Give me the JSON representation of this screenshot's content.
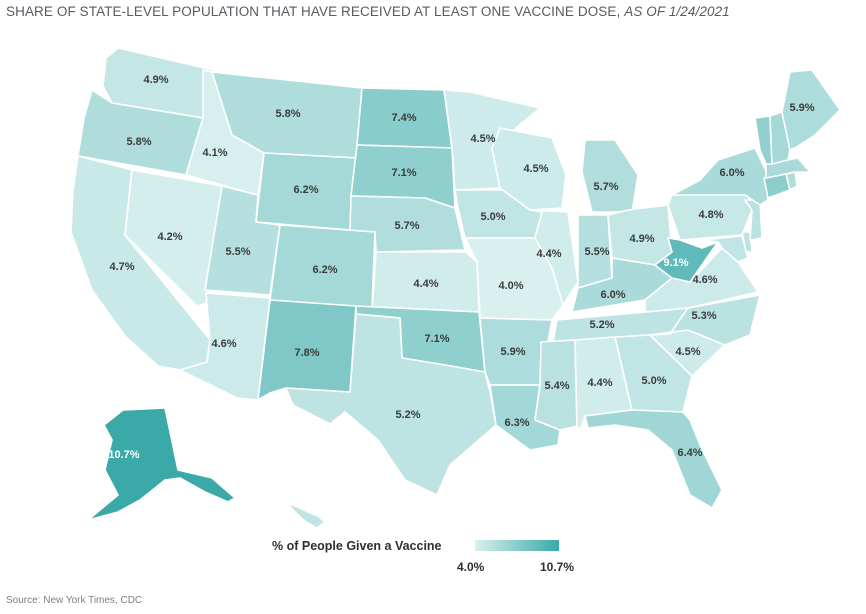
{
  "title": {
    "main": "SHARE OF STATE-LEVEL POPULATION THAT HAVE RECEIVED AT LEAST ONE VACCINE DOSE,",
    "date": "AS OF 1/24/2021"
  },
  "legend": {
    "title": "% of People Given a Vaccine",
    "min_label": "4.0%",
    "max_label": "10.7%",
    "min_value": 4.0,
    "max_value": 10.7,
    "color_low": "#d9f0ef",
    "color_high": "#3aa9a8"
  },
  "source": "Source: New York Times, CDC",
  "states": [
    {
      "id": "WA",
      "value": 4.9,
      "label": "4.9%"
    },
    {
      "id": "OR",
      "value": 5.8,
      "label": "5.8%"
    },
    {
      "id": "CA",
      "value": 4.7,
      "label": "4.7%"
    },
    {
      "id": "NV",
      "value": 4.2,
      "label": "4.2%"
    },
    {
      "id": "ID",
      "value": 4.1,
      "label": "4.1%"
    },
    {
      "id": "MT",
      "value": 5.8,
      "label": "5.8%"
    },
    {
      "id": "WY",
      "value": 6.2,
      "label": "6.2%"
    },
    {
      "id": "UT",
      "value": 5.5,
      "label": "5.5%"
    },
    {
      "id": "AZ",
      "value": 4.6,
      "label": "4.6%"
    },
    {
      "id": "CO",
      "value": 6.2,
      "label": "6.2%"
    },
    {
      "id": "NM",
      "value": 7.8,
      "label": "7.8%"
    },
    {
      "id": "ND",
      "value": 7.4,
      "label": "7.4%"
    },
    {
      "id": "SD",
      "value": 7.1,
      "label": "7.1%"
    },
    {
      "id": "NE",
      "value": 5.7,
      "label": "5.7%"
    },
    {
      "id": "KS",
      "value": 4.4,
      "label": "4.4%"
    },
    {
      "id": "OK",
      "value": 7.1,
      "label": "7.1%"
    },
    {
      "id": "TX",
      "value": 5.2,
      "label": "5.2%"
    },
    {
      "id": "MN",
      "value": 4.5,
      "label": "4.5%"
    },
    {
      "id": "IA",
      "value": 5.0,
      "label": "5.0%"
    },
    {
      "id": "MO",
      "value": 4.0,
      "label": "4.0%"
    },
    {
      "id": "AR",
      "value": 5.9,
      "label": "5.9%"
    },
    {
      "id": "LA",
      "value": 6.3,
      "label": "6.3%"
    },
    {
      "id": "WI",
      "value": 4.5,
      "label": "4.5%"
    },
    {
      "id": "IL",
      "value": 4.4,
      "label": "4.4%"
    },
    {
      "id": "MI",
      "value": 5.7,
      "label": "5.7%"
    },
    {
      "id": "IN",
      "value": 5.5,
      "label": "5.5%"
    },
    {
      "id": "OH",
      "value": 4.9,
      "label": "4.9%"
    },
    {
      "id": "KY",
      "value": 6.0,
      "label": "6.0%"
    },
    {
      "id": "TN",
      "value": 5.2,
      "label": "5.2%"
    },
    {
      "id": "MS",
      "value": 5.4,
      "label": "5.4%"
    },
    {
      "id": "AL",
      "value": 4.4,
      "label": "4.4%"
    },
    {
      "id": "GA",
      "value": 5.0,
      "label": "5.0%"
    },
    {
      "id": "FL",
      "value": 6.4,
      "label": "6.4%"
    },
    {
      "id": "SC",
      "value": 4.5,
      "label": "4.5%"
    },
    {
      "id": "NC",
      "value": 5.3,
      "label": "5.3%"
    },
    {
      "id": "VA",
      "value": 4.6,
      "label": "4.6%"
    },
    {
      "id": "WV",
      "value": 9.1,
      "label": "9.1%"
    },
    {
      "id": "PA",
      "value": 4.8,
      "label": "4.8%"
    },
    {
      "id": "NY",
      "value": 6.0,
      "label": "6.0%"
    },
    {
      "id": "ME",
      "value": 5.9,
      "label": "5.9%"
    },
    {
      "id": "AK",
      "value": 10.7,
      "label": "10.7%"
    },
    {
      "id": "VT",
      "value": 7.0,
      "label": ""
    },
    {
      "id": "NH",
      "value": 6.2,
      "label": ""
    },
    {
      "id": "MA",
      "value": 6.0,
      "label": ""
    },
    {
      "id": "CT",
      "value": 7.2,
      "label": ""
    },
    {
      "id": "RI",
      "value": 5.8,
      "label": ""
    },
    {
      "id": "NJ",
      "value": 5.3,
      "label": ""
    },
    {
      "id": "DE",
      "value": 5.2,
      "label": ""
    },
    {
      "id": "MD",
      "value": 5.0,
      "label": ""
    },
    {
      "id": "HI",
      "value": 5.0,
      "label": ""
    }
  ]
}
